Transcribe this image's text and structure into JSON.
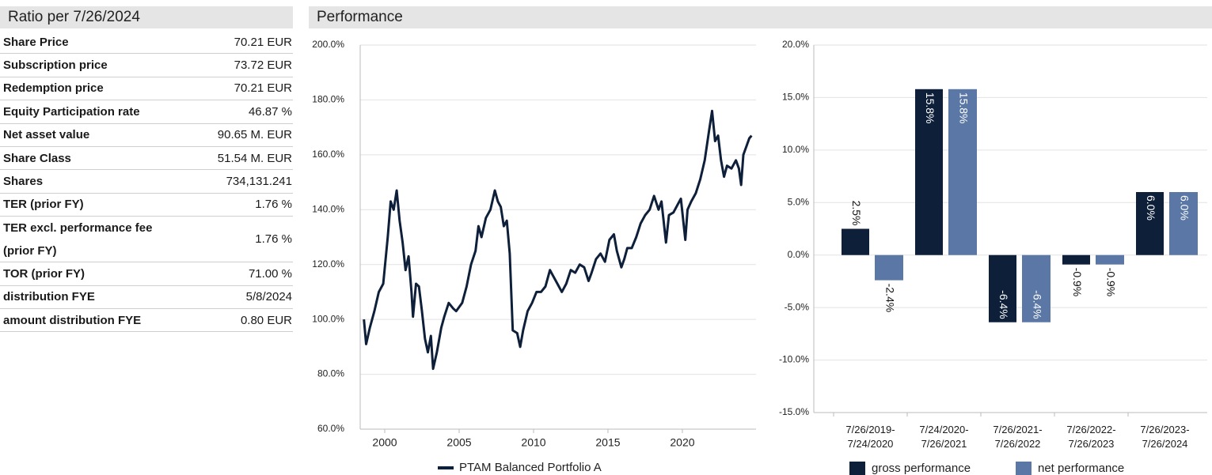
{
  "ratios": {
    "title": "Ratio per 7/26/2024",
    "rows": [
      [
        "Share Price",
        "70.21 EUR"
      ],
      [
        "Subscription price",
        "73.72 EUR"
      ],
      [
        "Redemption price",
        "70.21 EUR"
      ],
      [
        "Equity Participation rate",
        "46.87 %"
      ],
      [
        "Net asset value",
        "90.65 M. EUR"
      ],
      [
        "Share Class",
        "51.54 M. EUR"
      ],
      [
        "Shares",
        "734,131.241"
      ],
      [
        "TER (prior FY)",
        "1.76 %"
      ],
      [
        "TER excl. performance fee (prior FY)",
        "1.76 %"
      ],
      [
        "TOR (prior FY)",
        "71.00 %"
      ],
      [
        "distribution FYE",
        "5/8/2024"
      ],
      [
        "amount distribution FYE",
        "0.80 EUR"
      ]
    ]
  },
  "performance": {
    "title": "Performance"
  },
  "chart_data": [
    {
      "type": "line",
      "x": [
        1998.6,
        1998.75,
        1999.0,
        1999.3,
        1999.6,
        1999.9,
        2000.2,
        2000.4,
        2000.6,
        2000.8,
        2001.0,
        2001.2,
        2001.4,
        2001.6,
        2001.8,
        2001.9,
        2002.1,
        2002.3,
        2002.5,
        2002.7,
        2002.9,
        2003.1,
        2003.25,
        2003.5,
        2003.8,
        2004.0,
        2004.3,
        2004.6,
        2004.8,
        2005.2,
        2005.5,
        2005.8,
        2006.1,
        2006.3,
        2006.5,
        2006.8,
        2007.1,
        2007.4,
        2007.6,
        2007.8,
        2008.0,
        2008.2,
        2008.4,
        2008.6,
        2008.9,
        2009.1,
        2009.3,
        2009.6,
        2009.9,
        2010.2,
        2010.5,
        2010.8,
        2011.1,
        2011.3,
        2011.6,
        2011.9,
        2012.2,
        2012.5,
        2012.8,
        2013.1,
        2013.4,
        2013.7,
        2013.9,
        2014.2,
        2014.5,
        2014.8,
        2015.1,
        2015.4,
        2015.6,
        2015.9,
        2016.1,
        2016.3,
        2016.6,
        2016.9,
        2017.2,
        2017.5,
        2017.8,
        2018.1,
        2018.4,
        2018.6,
        2018.9,
        2019.1,
        2019.4,
        2019.7,
        2019.9,
        2020.2,
        2020.35,
        2020.6,
        2020.9,
        2021.2,
        2021.5,
        2021.8,
        2022.0,
        2022.2,
        2022.4,
        2022.6,
        2022.8,
        2023.0,
        2023.3,
        2023.6,
        2023.8,
        2023.95,
        2024.1,
        2024.3,
        2024.5,
        2024.65
      ],
      "series": [
        {
          "name": "PTAM Balanced Portfolio A",
          "color": "#0e1f3a",
          "values": [
            100,
            91,
            97,
            103,
            110,
            113,
            130,
            143,
            140,
            147,
            136,
            128,
            118,
            123,
            110,
            101,
            113,
            112,
            103,
            93,
            88,
            94,
            82,
            88,
            97,
            101,
            106,
            104,
            103,
            106,
            112,
            120,
            125,
            134,
            130,
            137,
            140,
            147,
            143,
            141,
            134,
            136,
            124,
            96,
            95,
            90,
            96,
            103,
            106,
            110,
            110,
            112,
            118,
            116,
            113,
            110,
            113,
            118,
            117,
            120,
            119,
            114,
            117,
            122,
            124,
            121,
            129,
            131,
            125,
            119,
            122,
            126,
            126,
            130,
            135,
            138,
            140,
            145,
            140,
            143,
            128,
            138,
            139,
            142,
            144,
            129,
            140,
            143,
            146,
            151,
            158,
            169,
            176,
            165,
            167,
            158,
            152,
            156,
            155,
            158,
            155,
            149,
            160,
            163,
            166,
            167
          ]
        }
      ],
      "xlim": [
        1998.35,
        2024.95
      ],
      "xticks": [
        2000,
        2005,
        2010,
        2015,
        2020
      ],
      "ylim": [
        60,
        200
      ],
      "yticks": [
        {
          "value": 60,
          "label": "60.0%"
        },
        {
          "value": 80,
          "label": "80.0%"
        },
        {
          "value": 100,
          "label": "100.0%"
        },
        {
          "value": 120,
          "label": "120.0%"
        },
        {
          "value": 140,
          "label": "140.0%"
        },
        {
          "value": 160,
          "label": "160.0%"
        },
        {
          "value": 180,
          "label": "180.0%"
        },
        {
          "value": 200,
          "label": "200.0%"
        }
      ],
      "grid": true
    },
    {
      "type": "bar",
      "categories": [
        "7/26/2019- 7/24/2020",
        "7/24/2020- 7/26/2021",
        "7/26/2021- 7/26/2022",
        "7/26/2022- 7/26/2023",
        "7/26/2023- 7/26/2024"
      ],
      "series": [
        {
          "name": "gross performance",
          "color": "#0e1f3a",
          "values": [
            2.5,
            15.8,
            -6.4,
            -0.9,
            6.0
          ],
          "value_labels": [
            "2.5%",
            "15.8%",
            "-6.4%",
            "-0.9%",
            "6.0%"
          ]
        },
        {
          "name": "net performance",
          "color": "#5b77a5",
          "values": [
            -2.4,
            15.8,
            -6.4,
            -0.9,
            6.0
          ],
          "value_labels": [
            "-2.4%",
            "15.8%",
            "-6.4%",
            "-0.9%",
            "6.0%"
          ]
        }
      ],
      "ylim": [
        -15,
        20
      ],
      "yticks": [
        {
          "value": -15,
          "label": "-15.0%"
        },
        {
          "value": -10,
          "label": "-10.0%"
        },
        {
          "value": -5,
          "label": "-5.0%"
        },
        {
          "value": 0,
          "label": "0.0%"
        },
        {
          "value": 5,
          "label": "5.0%"
        },
        {
          "value": 10,
          "label": "10.0%"
        },
        {
          "value": 15,
          "label": "15.0%"
        },
        {
          "value": 20,
          "label": "20.0%"
        }
      ],
      "grid": true
    }
  ]
}
